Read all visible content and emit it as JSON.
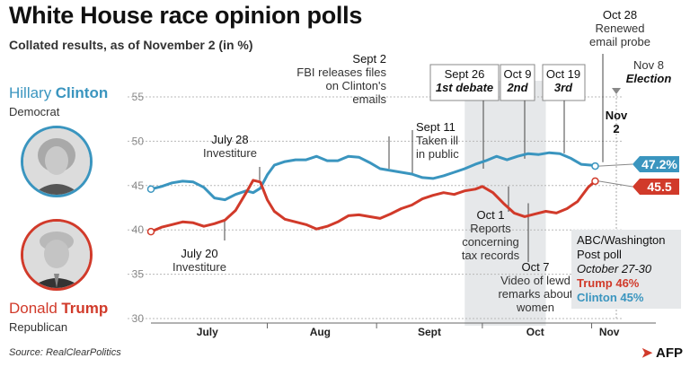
{
  "header": {
    "title": "White House race opinion polls",
    "subtitle": "Collated results, as of November 2 (in %)"
  },
  "candidates": {
    "clinton": {
      "first": "Hillary",
      "last": "Clinton",
      "party": "Democrat",
      "color": "#3a95bf"
    },
    "trump": {
      "first": "Donald",
      "last": "Trump",
      "party": "Republican",
      "color": "#d13a2a"
    }
  },
  "footer": {
    "source": "Source: RealClearPolitics",
    "logo": "AFP"
  },
  "chart_data": {
    "type": "line",
    "title": "White House race opinion polls",
    "subtitle": "Collated results, as of November 2 (in %)",
    "xlabel": "",
    "ylabel": "",
    "x_range": [
      "2016-06-29",
      "2016-11-08"
    ],
    "ylim": [
      30,
      55
    ],
    "y_ticks": [
      30,
      35,
      40,
      45,
      50,
      55
    ],
    "x_tick_labels": [
      "July",
      "Aug",
      "Sept",
      "Oct",
      "Nov"
    ],
    "grid": "horizontal dashed",
    "shaded_period": {
      "start": "2016-09-26",
      "end": "2016-10-19"
    },
    "series": [
      {
        "name": "Clinton",
        "color": "#3a95bf",
        "end_label": "47.2%",
        "points": [
          [
            "2016-06-29",
            44.6
          ],
          [
            "2016-07-02",
            44.9
          ],
          [
            "2016-07-05",
            45.3
          ],
          [
            "2016-07-08",
            45.5
          ],
          [
            "2016-07-11",
            45.4
          ],
          [
            "2016-07-14",
            44.8
          ],
          [
            "2016-07-17",
            43.6
          ],
          [
            "2016-07-20",
            43.4
          ],
          [
            "2016-07-23",
            44.0
          ],
          [
            "2016-07-26",
            44.4
          ],
          [
            "2016-07-28",
            44.2
          ],
          [
            "2016-07-30",
            44.7
          ],
          [
            "2016-08-01",
            46.2
          ],
          [
            "2016-08-03",
            47.3
          ],
          [
            "2016-08-06",
            47.7
          ],
          [
            "2016-08-09",
            47.9
          ],
          [
            "2016-08-12",
            47.9
          ],
          [
            "2016-08-15",
            48.3
          ],
          [
            "2016-08-18",
            47.8
          ],
          [
            "2016-08-21",
            47.8
          ],
          [
            "2016-08-24",
            48.3
          ],
          [
            "2016-08-27",
            48.2
          ],
          [
            "2016-08-30",
            47.6
          ],
          [
            "2016-09-02",
            46.9
          ],
          [
            "2016-09-05",
            46.7
          ],
          [
            "2016-09-08",
            46.5
          ],
          [
            "2016-09-11",
            46.3
          ],
          [
            "2016-09-14",
            45.9
          ],
          [
            "2016-09-17",
            45.8
          ],
          [
            "2016-09-20",
            46.1
          ],
          [
            "2016-09-23",
            46.5
          ],
          [
            "2016-09-26",
            46.9
          ],
          [
            "2016-09-29",
            47.4
          ],
          [
            "2016-10-02",
            47.8
          ],
          [
            "2016-10-05",
            48.3
          ],
          [
            "2016-10-08",
            47.9
          ],
          [
            "2016-10-11",
            48.3
          ],
          [
            "2016-10-14",
            48.6
          ],
          [
            "2016-10-17",
            48.5
          ],
          [
            "2016-10-20",
            48.7
          ],
          [
            "2016-10-23",
            48.6
          ],
          [
            "2016-10-26",
            48.1
          ],
          [
            "2016-10-29",
            47.4
          ],
          [
            "2016-11-01",
            47.3
          ],
          [
            "2016-11-02",
            47.2
          ]
        ]
      },
      {
        "name": "Trump",
        "color": "#d13a2a",
        "end_label": "45.5",
        "points": [
          [
            "2016-06-29",
            39.8
          ],
          [
            "2016-07-02",
            40.3
          ],
          [
            "2016-07-05",
            40.6
          ],
          [
            "2016-07-08",
            40.9
          ],
          [
            "2016-07-11",
            40.8
          ],
          [
            "2016-07-14",
            40.4
          ],
          [
            "2016-07-17",
            40.7
          ],
          [
            "2016-07-20",
            41.1
          ],
          [
            "2016-07-23",
            42.2
          ],
          [
            "2016-07-26",
            44.2
          ],
          [
            "2016-07-28",
            45.6
          ],
          [
            "2016-07-30",
            45.4
          ],
          [
            "2016-08-01",
            43.4
          ],
          [
            "2016-08-03",
            42.1
          ],
          [
            "2016-08-06",
            41.2
          ],
          [
            "2016-08-09",
            40.9
          ],
          [
            "2016-08-12",
            40.6
          ],
          [
            "2016-08-15",
            40.1
          ],
          [
            "2016-08-18",
            40.4
          ],
          [
            "2016-08-21",
            40.9
          ],
          [
            "2016-08-24",
            41.6
          ],
          [
            "2016-08-27",
            41.7
          ],
          [
            "2016-08-30",
            41.5
          ],
          [
            "2016-09-02",
            41.3
          ],
          [
            "2016-09-05",
            41.8
          ],
          [
            "2016-09-08",
            42.4
          ],
          [
            "2016-09-11",
            42.8
          ],
          [
            "2016-09-14",
            43.5
          ],
          [
            "2016-09-17",
            43.9
          ],
          [
            "2016-09-20",
            44.2
          ],
          [
            "2016-09-23",
            44.0
          ],
          [
            "2016-09-26",
            44.4
          ],
          [
            "2016-09-29",
            44.6
          ],
          [
            "2016-10-01",
            44.9
          ],
          [
            "2016-10-04",
            44.2
          ],
          [
            "2016-10-07",
            43.0
          ],
          [
            "2016-10-10",
            41.9
          ],
          [
            "2016-10-13",
            41.5
          ],
          [
            "2016-10-16",
            41.8
          ],
          [
            "2016-10-19",
            42.1
          ],
          [
            "2016-10-22",
            41.9
          ],
          [
            "2016-10-25",
            42.4
          ],
          [
            "2016-10-28",
            43.2
          ],
          [
            "2016-10-31",
            44.8
          ],
          [
            "2016-11-02",
            45.5
          ]
        ]
      }
    ],
    "annotations": [
      {
        "date": "2016-07-28",
        "series": "Trump",
        "lines": [
          "July 28",
          "Investiture"
        ],
        "italic": false,
        "side": "above"
      },
      {
        "date": "2016-07-20",
        "series": "Trump",
        "lines": [
          "July 20",
          "Investiture"
        ],
        "italic": false,
        "side": "below"
      },
      {
        "date": "2016-09-02",
        "series": "Clinton",
        "lines": [
          "Sept 2",
          "FBI releases files",
          "on Clinton's",
          "emails"
        ],
        "italic": false,
        "side": "above"
      },
      {
        "date": "2016-09-11",
        "series": "Clinton",
        "lines": [
          "Sept 11",
          "Taken ill",
          "in public"
        ],
        "italic": false,
        "side": "above"
      },
      {
        "date": "2016-09-26",
        "series": "Clinton",
        "lines": [
          "Sept 26",
          "1st debate"
        ],
        "italic": true,
        "side": "above"
      },
      {
        "date": "2016-10-09",
        "series": "Clinton",
        "lines": [
          "Oct 9",
          "2nd"
        ],
        "italic": true,
        "side": "above"
      },
      {
        "date": "2016-10-19",
        "series": "Clinton",
        "lines": [
          "Oct 19",
          "3rd"
        ],
        "italic": true,
        "side": "above"
      },
      {
        "date": "2016-10-28",
        "series": "Clinton",
        "lines": [
          "Oct 28",
          "Renewed",
          "email probe"
        ],
        "italic": false,
        "side": "above"
      },
      {
        "date": "2016-11-08",
        "series": "none",
        "lines": [
          "Nov 8",
          "Election"
        ],
        "italic": true,
        "side": "above"
      },
      {
        "date": "2016-11-02",
        "series": "none",
        "lines": [
          "Nov",
          "2"
        ],
        "italic": false,
        "side": "above"
      },
      {
        "date": "2016-10-01",
        "series": "Trump",
        "lines": [
          "Oct 1",
          "Reports",
          "concerning",
          "tax records"
        ],
        "italic": false,
        "side": "below"
      },
      {
        "date": "2016-10-07",
        "series": "Trump",
        "lines": [
          "Oct 7",
          "Video of lewd",
          "remarks about",
          "women"
        ],
        "italic": false,
        "side": "below"
      }
    ],
    "poll_box": {
      "lines": [
        "ABC/Washington",
        "Post poll"
      ],
      "dates": "October 27-30",
      "trump": "Trump  46%",
      "clinton": "Clinton 45%"
    }
  }
}
